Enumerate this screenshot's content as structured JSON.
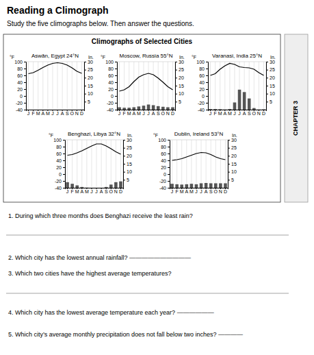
{
  "title": "Reading a Climograph",
  "subtitle": "Study the five climographs below. Then answer the questions.",
  "annotations": [
    "Climographs of Selected Cities",
    "CHAPTER 3",
    "1. During which three months does Benghazi receive the least rain?",
    "2. Which city has the lowest annual rainfall? ——————————",
    "3. Which two cities have the highest average temperatures?",
    "4. Which city has the lowest average temperature each year? ——————",
    "5. Which city’s average monthly precipitation does not fall below two inches? ————"
  ],
  "chart_data": [
    {
      "type": "bar",
      "title": "Aswān, Egypt 24°N",
      "categories": [
        "J",
        "F",
        "M",
        "A",
        "M",
        "J",
        "J",
        "A",
        "S",
        "O",
        "N",
        "D"
      ],
      "ylabel": "°F",
      "y2label": "In.",
      "ylim": [
        -40,
        100
      ],
      "yticks": [
        -40,
        -20,
        0,
        20,
        40,
        60,
        80,
        100
      ],
      "y2lim": [
        0,
        30
      ],
      "y2ticks": [
        5,
        10,
        15,
        20,
        25,
        30
      ],
      "grid": true,
      "series": [
        {
          "type": "bar",
          "axis": "y2",
          "color": "#555555",
          "values": [
            0.0,
            0.0,
            0.0,
            0.0,
            0.0,
            0.0,
            0.0,
            0.0,
            0.0,
            0.0,
            0.0,
            0.05
          ]
        },
        {
          "type": "line",
          "color": "black",
          "values": [
            65,
            68,
            75,
            83,
            90,
            95,
            97,
            95,
            90,
            82,
            72,
            66
          ]
        }
      ]
    },
    {
      "type": "bar",
      "title": "Moscow, Russia 55°N",
      "categories": [
        "J",
        "F",
        "M",
        "A",
        "M",
        "J",
        "J",
        "A",
        "S",
        "O",
        "N",
        "D"
      ],
      "ylabel": "°F",
      "y2label": "In.",
      "ylim": [
        -40,
        100
      ],
      "yticks": [
        -40,
        -20,
        0,
        20,
        40,
        60,
        80,
        100
      ],
      "y2lim": [
        0,
        30
      ],
      "y2ticks": [
        5,
        10,
        15,
        20,
        25,
        30
      ],
      "grid": true,
      "series": [
        {
          "type": "bar",
          "axis": "y2",
          "color": "#555555",
          "values": [
            1.5,
            1.2,
            1.2,
            1.5,
            2.0,
            2.5,
            3.2,
            2.8,
            2.2,
            1.8,
            1.5,
            1.5
          ]
        },
        {
          "type": "line",
          "color": "black",
          "values": [
            14,
            18,
            27,
            42,
            55,
            62,
            66,
            62,
            52,
            40,
            27,
            18
          ]
        }
      ]
    },
    {
      "type": "bar",
      "title": "Varanasi, India 25°N",
      "categories": [
        "J",
        "F",
        "M",
        "A",
        "M",
        "J",
        "J",
        "A",
        "S",
        "O",
        "N",
        "D"
      ],
      "ylabel": "°F",
      "y2label": "In.",
      "ylim": [
        -40,
        100
      ],
      "yticks": [
        -40,
        -20,
        0,
        20,
        40,
        60,
        80,
        100
      ],
      "y2lim": [
        0,
        30
      ],
      "y2ticks": [
        5,
        10,
        15,
        20,
        25,
        30
      ],
      "grid": true,
      "series": [
        {
          "type": "bar",
          "axis": "y2",
          "color": "#555555",
          "values": [
            0.4,
            0.4,
            0.3,
            0.1,
            0.4,
            4.5,
            12.5,
            11.0,
            7.0,
            1.0,
            0.1,
            0.2
          ]
        },
        {
          "type": "line",
          "color": "black",
          "values": [
            60,
            65,
            78,
            88,
            95,
            92,
            85,
            83,
            82,
            78,
            68,
            60
          ]
        }
      ]
    },
    {
      "type": "bar",
      "title": "Benghazi, Libya 32°N",
      "categories": [
        "J",
        "F",
        "M",
        "A",
        "M",
        "J",
        "J",
        "A",
        "S",
        "O",
        "N",
        "D"
      ],
      "ylabel": "°F",
      "y2label": "In.",
      "ylim": [
        -40,
        100
      ],
      "yticks": [
        -40,
        -20,
        0,
        20,
        40,
        60,
        80,
        100
      ],
      "y2lim": [
        0,
        30
      ],
      "y2ticks": [
        5,
        10,
        15,
        20,
        25,
        30
      ],
      "grid": true,
      "series": [
        {
          "type": "bar",
          "axis": "y2",
          "color": "#555555",
          "values": [
            3.5,
            2.5,
            1.5,
            0.5,
            0.1,
            0.0,
            0.0,
            0.0,
            0.5,
            2.0,
            3.5,
            4.0
          ]
        },
        {
          "type": "line",
          "color": "black",
          "values": [
            55,
            57,
            62,
            68,
            75,
            82,
            88,
            88,
            82,
            74,
            65,
            58
          ]
        }
      ]
    },
    {
      "type": "bar",
      "title": "Dublin, Ireland 53°N",
      "categories": [
        "J",
        "F",
        "M",
        "A",
        "M",
        "J",
        "J",
        "A",
        "S",
        "O",
        "N",
        "D"
      ],
      "ylabel": "°F",
      "y2label": "In.",
      "ylim": [
        -40,
        100
      ],
      "yticks": [
        -40,
        -20,
        0,
        20,
        40,
        60,
        80,
        100
      ],
      "y2lim": [
        0,
        30
      ],
      "y2ticks": [
        5,
        10,
        15,
        20,
        25,
        30
      ],
      "grid": true,
      "series": [
        {
          "type": "bar",
          "axis": "y2",
          "color": "#555555",
          "values": [
            2.5,
            2.2,
            2.0,
            2.2,
            2.5,
            2.2,
            2.8,
            3.0,
            2.8,
            2.8,
            2.8,
            2.8
          ]
        },
        {
          "type": "line",
          "color": "black",
          "values": [
            40,
            42,
            45,
            50,
            55,
            60,
            63,
            62,
            57,
            50,
            45,
            42
          ]
        }
      ]
    }
  ]
}
